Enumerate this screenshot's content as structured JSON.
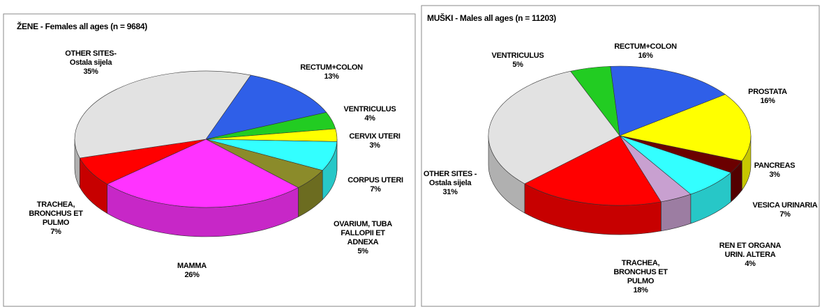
{
  "chart_data": [
    {
      "type": "pie3d",
      "title": "ŽENE - Females all ages (n = 9684)",
      "categories": [
        [
          "RECTUM+COLON"
        ],
        [
          "VENTRICULUS"
        ],
        [
          "CERVIX UTERI"
        ],
        [
          "CORPUS UTERI"
        ],
        [
          "OVARIUM, TUBA",
          "FALLOPII ET",
          "ADNEXA"
        ],
        [
          "MAMMA"
        ],
        [
          "TRACHEA,",
          "BRONCHUS ET",
          "PULMO"
        ],
        [
          "OTHER SITES-",
          "Ostala sijela"
        ]
      ],
      "values": [
        13,
        4,
        3,
        7,
        5,
        26,
        7,
        35
      ],
      "value_labels": [
        "13%",
        "4%",
        "3%",
        "7%",
        "5%",
        "26%",
        "7%",
        "35%"
      ],
      "colors": [
        "#2f5fe8",
        "#22cc22",
        "#ffff00",
        "#33ffff",
        "#8b8b2a",
        "#ff33ff",
        "#ff0000",
        "#e2e2e2"
      ]
    },
    {
      "type": "pie3d",
      "title": "MUŠKI - Males all ages (n = 11203)",
      "categories": [
        [
          "VENTRICULUS"
        ],
        [
          "RECTUM+COLON"
        ],
        [
          "PROSTATA"
        ],
        [
          "PANCREAS"
        ],
        [
          "VESICA URINARIA"
        ],
        [
          "REN ET ORGANA",
          "URIN. ALTERA"
        ],
        [
          "TRACHEA,",
          "BRONCHUS ET",
          "PULMO"
        ],
        [
          "OTHER SITES -",
          "Ostala sijela"
        ]
      ],
      "values": [
        5,
        16,
        16,
        3,
        7,
        4,
        18,
        31
      ],
      "value_labels": [
        "5%",
        "16%",
        "16%",
        "3%",
        "7%",
        "4%",
        "18%",
        "31%"
      ],
      "colors": [
        "#22cc22",
        "#2f5fe8",
        "#ffff00",
        "#6b0000",
        "#33ffff",
        "#c8a0d0",
        "#ff0000",
        "#e2e2e2"
      ]
    }
  ]
}
